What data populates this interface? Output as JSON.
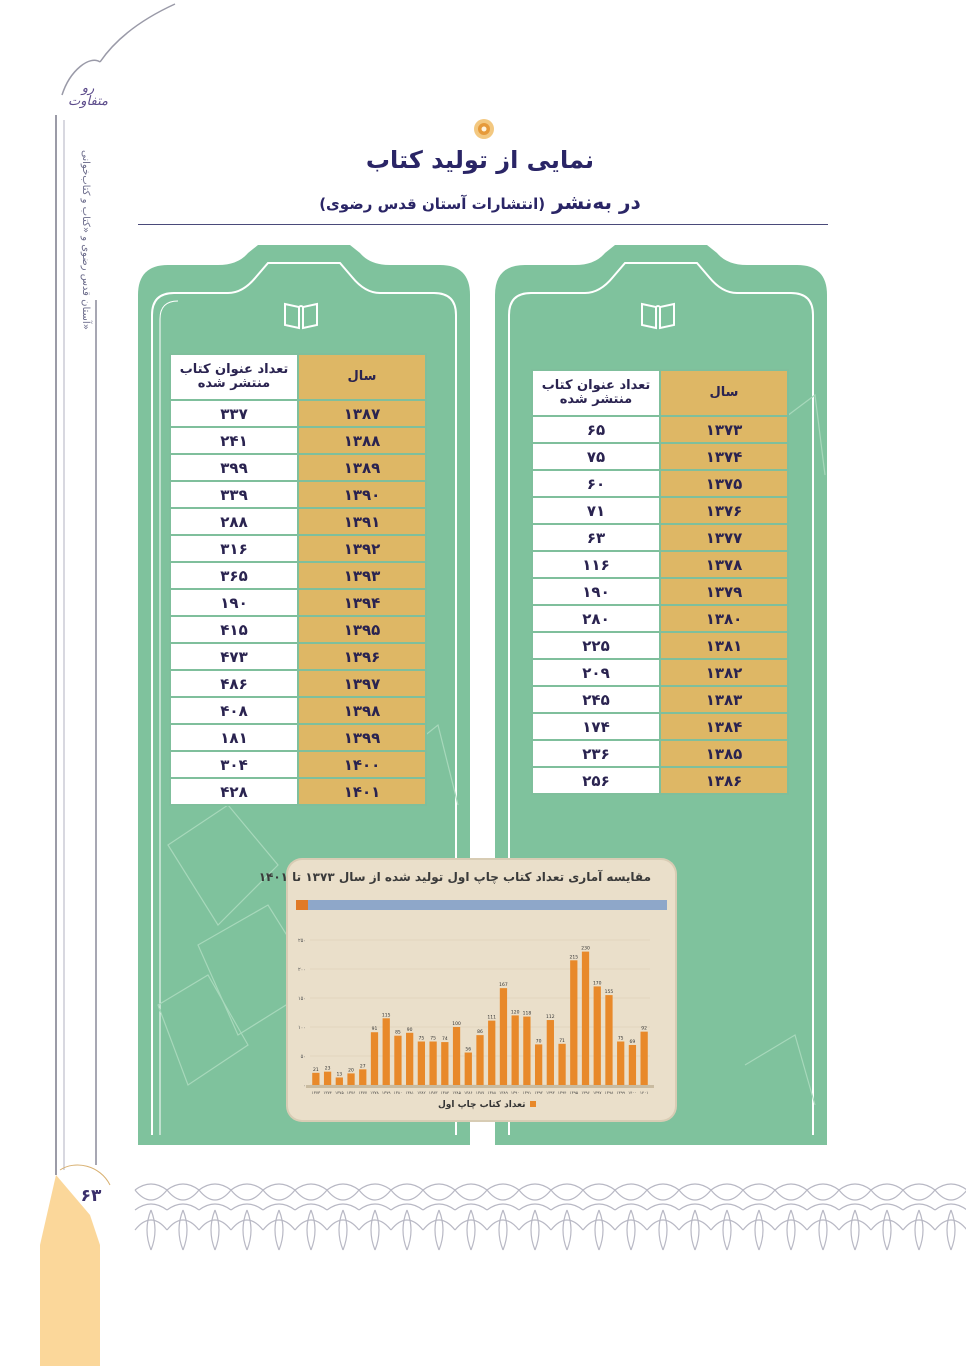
{
  "page": {
    "title": "نمایی از تولید کتاب",
    "subtitle_main": "در به‌نشر",
    "subtitle_paren": "(انتشارات آستان قدس رضوی)",
    "page_number": "۶۳",
    "side_text_a": "آستان قدس رضوی و «کتاب و کتاب‌خوانی»",
    "logo_text": "روایت متفاوت"
  },
  "colors": {
    "panel_green": "#7fc29d",
    "year_cell": "#deb765",
    "bar": "#e8892a",
    "accent_purple": "#2a2566"
  },
  "table_headers": {
    "year": "سال",
    "count": "تعداد عنوان کتاب منتشر شده"
  },
  "table_right": [
    {
      "year": "۱۳۷۳",
      "count": "۶۵"
    },
    {
      "year": "۱۳۷۴",
      "count": "۷۵"
    },
    {
      "year": "۱۳۷۵",
      "count": "۶۰"
    },
    {
      "year": "۱۳۷۶",
      "count": "۷۱"
    },
    {
      "year": "۱۳۷۷",
      "count": "۶۳"
    },
    {
      "year": "۱۳۷۸",
      "count": "۱۱۶"
    },
    {
      "year": "۱۳۷۹",
      "count": "۱۹۰"
    },
    {
      "year": "۱۳۸۰",
      "count": "۲۸۰"
    },
    {
      "year": "۱۳۸۱",
      "count": "۲۲۵"
    },
    {
      "year": "۱۳۸۲",
      "count": "۲۰۹"
    },
    {
      "year": "۱۳۸۳",
      "count": "۲۴۵"
    },
    {
      "year": "۱۳۸۴",
      "count": "۱۷۴"
    },
    {
      "year": "۱۳۸۵",
      "count": "۲۳۶"
    },
    {
      "year": "۱۳۸۶",
      "count": "۲۵۶"
    }
  ],
  "table_left": [
    {
      "year": "۱۳۸۷",
      "count": "۳۳۷"
    },
    {
      "year": "۱۳۸۸",
      "count": "۲۴۱"
    },
    {
      "year": "۱۳۸۹",
      "count": "۳۹۹"
    },
    {
      "year": "۱۳۹۰",
      "count": "۳۳۹"
    },
    {
      "year": "۱۳۹۱",
      "count": "۲۸۸"
    },
    {
      "year": "۱۳۹۲",
      "count": "۳۱۶"
    },
    {
      "year": "۱۳۹۳",
      "count": "۳۶۵"
    },
    {
      "year": "۱۳۹۴",
      "count": "۱۹۰"
    },
    {
      "year": "۱۳۹۵",
      "count": "۴۱۵"
    },
    {
      "year": "۱۳۹۶",
      "count": "۴۷۳"
    },
    {
      "year": "۱۳۹۷",
      "count": "۴۸۶"
    },
    {
      "year": "۱۳۹۸",
      "count": "۴۰۸"
    },
    {
      "year": "۱۳۹۹",
      "count": "۱۸۱"
    },
    {
      "year": "۱۴۰۰",
      "count": "۳۰۴"
    },
    {
      "year": "۱۴۰۱",
      "count": "۴۲۸"
    }
  ],
  "chart_data": {
    "type": "bar",
    "title": "مقایسه آماری تعداد کتاب چاپ اول تولید شده از سال ۱۳۷۳ تا ۱۴۰۱",
    "legend": "تعداد کتاب چاپ اول",
    "categories": [
      "۱۳۷۳",
      "۱۳۷۴",
      "۱۳۷۵",
      "۱۳۷۶",
      "۱۳۷۷",
      "۱۳۷۸",
      "۱۳۷۹",
      "۱۳۸۰",
      "۱۳۸۱",
      "۱۳۸۲",
      "۱۳۸۳",
      "۱۳۸۴",
      "۱۳۸۵",
      "۱۳۸۶",
      "۱۳۸۷",
      "۱۳۸۸",
      "۱۳۸۹",
      "۱۳۹۰",
      "۱۳۹۱",
      "۱۳۹۲",
      "۱۳۹۳",
      "۱۳۹۴",
      "۱۳۹۵",
      "۱۳۹۶",
      "۱۳۹۷",
      "۱۳۹۸",
      "۱۳۹۹",
      "۱۴۰۰",
      "۱۴۰۱"
    ],
    "values": [
      21,
      23,
      13,
      20,
      27,
      91,
      115,
      85,
      90,
      75,
      75,
      74,
      100,
      56,
      86,
      111,
      167,
      120,
      118,
      70,
      112,
      71,
      215,
      230,
      170,
      155,
      75,
      69,
      92
    ],
    "ylim": [
      0,
      250
    ],
    "yticks": [
      "۰",
      "۵۰",
      "۱۰۰",
      "۱۵۰",
      "۲۰۰",
      "۲۵۰"
    ]
  }
}
